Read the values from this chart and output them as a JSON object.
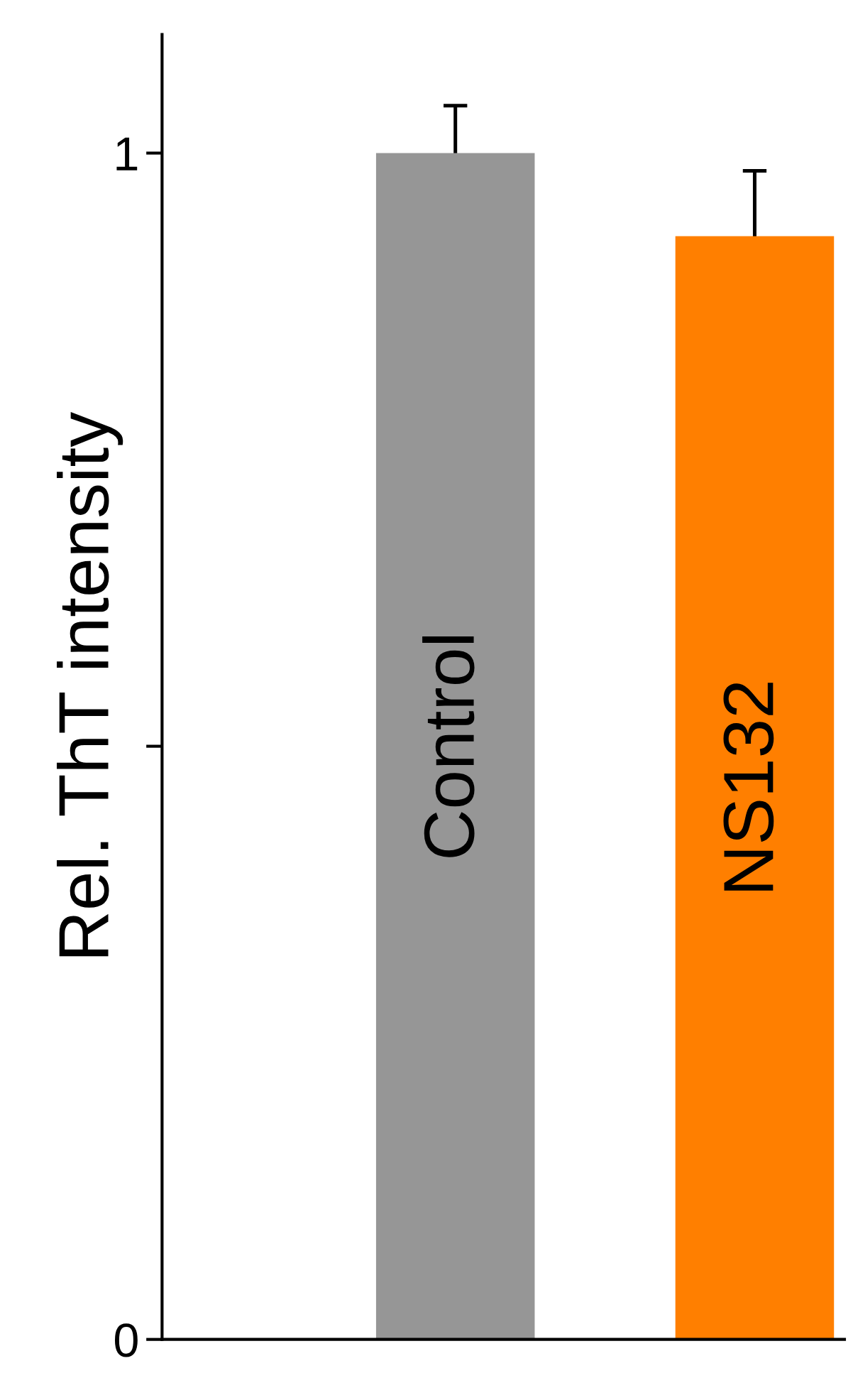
{
  "chart_data": {
    "type": "bar",
    "ylabel": "Rel. ThT intensity",
    "categories": [
      "Control",
      "NS132"
    ],
    "values": [
      1.0,
      0.93
    ],
    "errors": [
      0.04,
      0.055
    ],
    "colors": [
      "#969696",
      "#ff7f00"
    ],
    "ylim": [
      0,
      1.1
    ],
    "yticks": [
      0,
      {
        "value": 0.5,
        "label": null
      },
      1
    ],
    "grid": false
  }
}
